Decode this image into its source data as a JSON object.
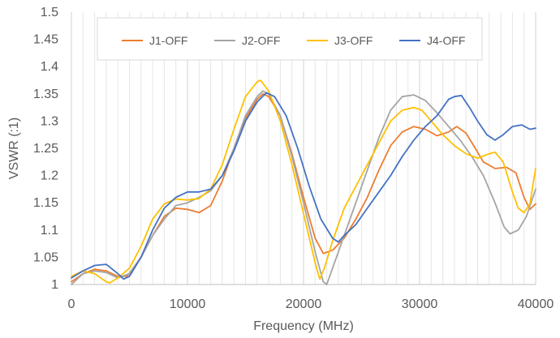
{
  "chart_data": {
    "type": "line",
    "xlabel": "Frequency (MHz)",
    "ylabel": "VSWR (:1)",
    "xlim": [
      0,
      40000
    ],
    "ylim": [
      1,
      1.5
    ],
    "x_ticks": [
      0,
      10000,
      20000,
      30000,
      40000
    ],
    "x_tick_labels": [
      "0",
      "10000",
      "20000",
      "30000",
      "40000"
    ],
    "y_ticks": [
      1,
      1.05,
      1.1,
      1.15,
      1.2,
      1.25,
      1.3,
      1.35,
      1.4,
      1.45,
      1.5
    ],
    "y_tick_labels": [
      "1",
      "1.05",
      "1.1",
      "1.15",
      "1.2",
      "1.25",
      "1.3",
      "1.35",
      "1.4",
      "1.45",
      "1.5"
    ],
    "x_minor_step": 1000,
    "grid": "vertical-major-and-minor",
    "legend_position": "top",
    "series": [
      {
        "name": "J1-OFF",
        "color": "#ED7D31",
        "points": [
          [
            0,
            1.005
          ],
          [
            1000,
            1.02
          ],
          [
            2000,
            1.028
          ],
          [
            3000,
            1.025
          ],
          [
            4000,
            1.015
          ],
          [
            4800,
            1.015
          ],
          [
            6000,
            1.05
          ],
          [
            7000,
            1.09
          ],
          [
            8000,
            1.125
          ],
          [
            9000,
            1.14
          ],
          [
            10000,
            1.138
          ],
          [
            11000,
            1.132
          ],
          [
            12000,
            1.145
          ],
          [
            13000,
            1.19
          ],
          [
            14000,
            1.25
          ],
          [
            15000,
            1.305
          ],
          [
            16000,
            1.34
          ],
          [
            16500,
            1.35
          ],
          [
            17000,
            1.345
          ],
          [
            18000,
            1.31
          ],
          [
            19000,
            1.24
          ],
          [
            20000,
            1.16
          ],
          [
            21000,
            1.085
          ],
          [
            21700,
            1.057
          ],
          [
            22500,
            1.063
          ],
          [
            23500,
            1.085
          ],
          [
            24500,
            1.12
          ],
          [
            25500,
            1.16
          ],
          [
            26500,
            1.21
          ],
          [
            27500,
            1.255
          ],
          [
            28500,
            1.28
          ],
          [
            29500,
            1.29
          ],
          [
            30500,
            1.285
          ],
          [
            31500,
            1.273
          ],
          [
            32500,
            1.28
          ],
          [
            33200,
            1.29
          ],
          [
            34000,
            1.278
          ],
          [
            34800,
            1.25
          ],
          [
            35500,
            1.225
          ],
          [
            36500,
            1.213
          ],
          [
            37500,
            1.215
          ],
          [
            38300,
            1.205
          ],
          [
            39000,
            1.16
          ],
          [
            39500,
            1.138
          ],
          [
            40000,
            1.148
          ]
        ]
      },
      {
        "name": "J2-OFF",
        "color": "#A5A5A5",
        "points": [
          [
            0,
            1.0
          ],
          [
            1000,
            1.02
          ],
          [
            2000,
            1.025
          ],
          [
            3000,
            1.022
          ],
          [
            4000,
            1.012
          ],
          [
            5000,
            1.02
          ],
          [
            6000,
            1.05
          ],
          [
            7000,
            1.09
          ],
          [
            8000,
            1.12
          ],
          [
            9000,
            1.145
          ],
          [
            10000,
            1.15
          ],
          [
            11000,
            1.16
          ],
          [
            12000,
            1.172
          ],
          [
            13000,
            1.2
          ],
          [
            14000,
            1.25
          ],
          [
            15000,
            1.31
          ],
          [
            16000,
            1.345
          ],
          [
            16500,
            1.355
          ],
          [
            17000,
            1.35
          ],
          [
            18000,
            1.31
          ],
          [
            19000,
            1.235
          ],
          [
            20000,
            1.15
          ],
          [
            21000,
            1.06
          ],
          [
            21700,
            1.005
          ],
          [
            22000,
            1.0
          ],
          [
            22500,
            1.03
          ],
          [
            23500,
            1.09
          ],
          [
            24500,
            1.15
          ],
          [
            25500,
            1.21
          ],
          [
            26500,
            1.27
          ],
          [
            27500,
            1.32
          ],
          [
            28500,
            1.345
          ],
          [
            29500,
            1.348
          ],
          [
            30500,
            1.338
          ],
          [
            31500,
            1.315
          ],
          [
            32500,
            1.29
          ],
          [
            33500,
            1.265
          ],
          [
            34500,
            1.235
          ],
          [
            35500,
            1.2
          ],
          [
            36500,
            1.15
          ],
          [
            37300,
            1.105
          ],
          [
            37800,
            1.093
          ],
          [
            38500,
            1.1
          ],
          [
            39200,
            1.125
          ],
          [
            40000,
            1.175
          ]
        ]
      },
      {
        "name": "J3-OFF",
        "color": "#FFC000",
        "points": [
          [
            0,
            1.015
          ],
          [
            1000,
            1.025
          ],
          [
            2000,
            1.02
          ],
          [
            3000,
            1.005
          ],
          [
            3300,
            1.003
          ],
          [
            4000,
            1.012
          ],
          [
            5000,
            1.03
          ],
          [
            6000,
            1.07
          ],
          [
            7000,
            1.12
          ],
          [
            8000,
            1.148
          ],
          [
            9000,
            1.157
          ],
          [
            10000,
            1.155
          ],
          [
            11000,
            1.158
          ],
          [
            12000,
            1.175
          ],
          [
            13000,
            1.22
          ],
          [
            14000,
            1.285
          ],
          [
            15000,
            1.345
          ],
          [
            16000,
            1.372
          ],
          [
            16300,
            1.375
          ],
          [
            17000,
            1.355
          ],
          [
            18000,
            1.3
          ],
          [
            19000,
            1.22
          ],
          [
            20000,
            1.13
          ],
          [
            21000,
            1.04
          ],
          [
            21400,
            1.01
          ],
          [
            21800,
            1.03
          ],
          [
            22500,
            1.08
          ],
          [
            23500,
            1.14
          ],
          [
            24500,
            1.18
          ],
          [
            25500,
            1.22
          ],
          [
            26500,
            1.26
          ],
          [
            27500,
            1.3
          ],
          [
            28500,
            1.32
          ],
          [
            29500,
            1.325
          ],
          [
            30200,
            1.32
          ],
          [
            31000,
            1.3
          ],
          [
            32000,
            1.275
          ],
          [
            33000,
            1.255
          ],
          [
            34000,
            1.24
          ],
          [
            35000,
            1.232
          ],
          [
            36000,
            1.24
          ],
          [
            36500,
            1.243
          ],
          [
            37200,
            1.225
          ],
          [
            38000,
            1.17
          ],
          [
            38500,
            1.14
          ],
          [
            39000,
            1.132
          ],
          [
            39500,
            1.148
          ],
          [
            40000,
            1.213
          ]
        ]
      },
      {
        "name": "J4-OFF",
        "color": "#4472C4",
        "points": [
          [
            0,
            1.012
          ],
          [
            1000,
            1.025
          ],
          [
            2000,
            1.035
          ],
          [
            3000,
            1.037
          ],
          [
            4000,
            1.02
          ],
          [
            4500,
            1.01
          ],
          [
            5000,
            1.015
          ],
          [
            6000,
            1.05
          ],
          [
            7000,
            1.1
          ],
          [
            8000,
            1.14
          ],
          [
            9000,
            1.16
          ],
          [
            10000,
            1.17
          ],
          [
            11000,
            1.17
          ],
          [
            12000,
            1.175
          ],
          [
            13000,
            1.2
          ],
          [
            14000,
            1.245
          ],
          [
            15000,
            1.3
          ],
          [
            16000,
            1.335
          ],
          [
            16800,
            1.352
          ],
          [
            17500,
            1.345
          ],
          [
            18500,
            1.31
          ],
          [
            19500,
            1.25
          ],
          [
            20500,
            1.18
          ],
          [
            21500,
            1.12
          ],
          [
            22500,
            1.085
          ],
          [
            23000,
            1.078
          ],
          [
            23500,
            1.09
          ],
          [
            24500,
            1.11
          ],
          [
            25500,
            1.14
          ],
          [
            26500,
            1.17
          ],
          [
            27500,
            1.2
          ],
          [
            28500,
            1.235
          ],
          [
            29500,
            1.265
          ],
          [
            30500,
            1.29
          ],
          [
            31500,
            1.31
          ],
          [
            32500,
            1.34
          ],
          [
            33000,
            1.345
          ],
          [
            33600,
            1.347
          ],
          [
            34300,
            1.325
          ],
          [
            35000,
            1.3
          ],
          [
            35800,
            1.275
          ],
          [
            36500,
            1.265
          ],
          [
            37200,
            1.275
          ],
          [
            38000,
            1.29
          ],
          [
            38800,
            1.293
          ],
          [
            39500,
            1.285
          ],
          [
            40000,
            1.287
          ]
        ]
      }
    ]
  }
}
